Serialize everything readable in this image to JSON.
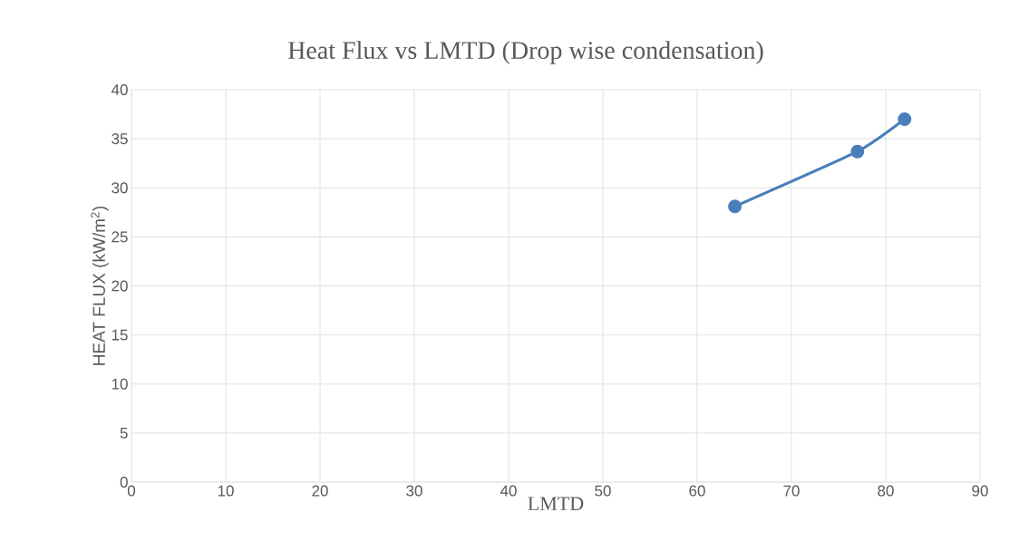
{
  "chart_data": {
    "type": "line",
    "title": "Heat Flux vs LMTD (Drop wise condensation)",
    "xlabel": "LMTD",
    "ylabel": "HEAT FLUX (kW/m$^{2}$)",
    "x": [
      64,
      77,
      82
    ],
    "series": [
      {
        "color": "#4a7ebb",
        "values": [
          28.1,
          33.7,
          37.0
        ]
      }
    ],
    "xlim": [
      0,
      90
    ],
    "xticks": [
      0,
      10,
      20,
      30,
      40,
      50,
      60,
      70,
      80,
      90
    ],
    "ylim": [
      0,
      40
    ],
    "yticks": [
      0,
      5,
      10,
      15,
      20,
      25,
      30,
      35,
      40
    ],
    "grid": true,
    "marker": "circle",
    "line_style": "solid"
  }
}
